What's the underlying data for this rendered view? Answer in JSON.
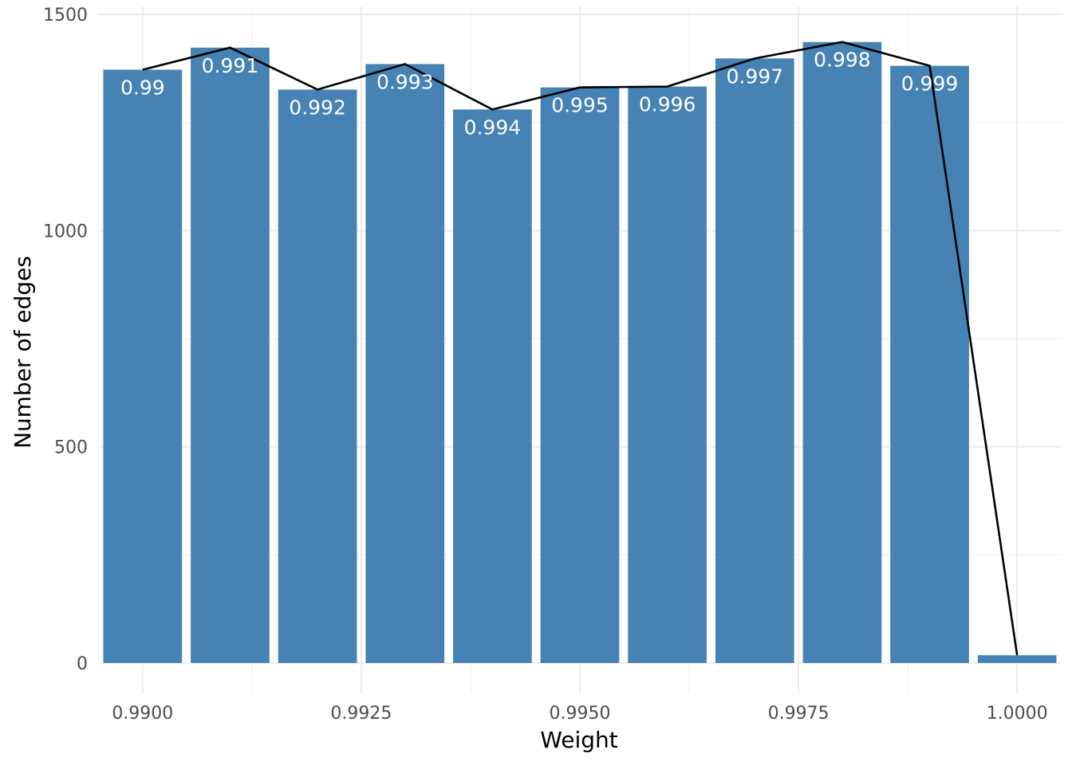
{
  "chart_data": {
    "type": "bar",
    "xlabel": "Weight",
    "ylabel": "Number of edges",
    "xlim": [
      0.9895,
      1.0005
    ],
    "ylim": [
      0,
      1500
    ],
    "x_ticks": [
      "0.9900",
      "0.9925",
      "0.9950",
      "0.9975",
      "1.0000"
    ],
    "y_ticks": [
      "0",
      "500",
      "1000",
      "1500"
    ],
    "grid": true,
    "legend": "none",
    "bar_color": "#4682b4",
    "line_color": "#000000",
    "bars": [
      {
        "x": 0.99,
        "value": 1372,
        "label": "0.99"
      },
      {
        "x": 0.991,
        "value": 1423,
        "label": "0.991"
      },
      {
        "x": 0.992,
        "value": 1326,
        "label": "0.992"
      },
      {
        "x": 0.993,
        "value": 1385,
        "label": "0.993"
      },
      {
        "x": 0.994,
        "value": 1280,
        "label": "0.994"
      },
      {
        "x": 0.995,
        "value": 1331,
        "label": "0.995"
      },
      {
        "x": 0.996,
        "value": 1333,
        "label": "0.996"
      },
      {
        "x": 0.997,
        "value": 1398,
        "label": "0.997"
      },
      {
        "x": 0.998,
        "value": 1436,
        "label": "0.998"
      },
      {
        "x": 0.999,
        "value": 1381,
        "label": "0.999"
      },
      {
        "x": 1.0,
        "value": 18,
        "label": ""
      }
    ]
  }
}
